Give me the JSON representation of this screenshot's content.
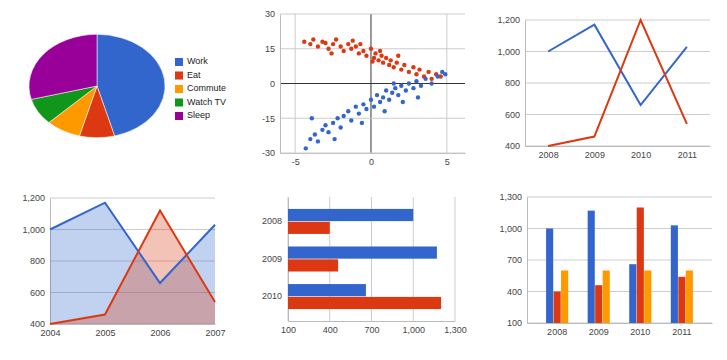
{
  "chart_data": [
    {
      "type": "pie",
      "categories": [
        "Work",
        "Eat",
        "Commute",
        "Watch TV",
        "Sleep"
      ],
      "values": [
        11,
        2,
        2,
        2,
        7
      ],
      "colors": [
        "#3366cc",
        "#dc3912",
        "#ff9900",
        "#109618",
        "#990099"
      ],
      "legend": "right"
    },
    {
      "type": "scatter",
      "xlim": [
        -6,
        6.2
      ],
      "xticks": [
        -5,
        0,
        5
      ],
      "ylim": [
        -30,
        30
      ],
      "yticks": [
        -30,
        -15,
        0,
        15,
        30
      ],
      "grid": true,
      "marker": "circle",
      "series": [
        {
          "color": "#dc3912",
          "x": [
            -4.4,
            -4,
            -3.8,
            -3.5,
            -3.2,
            -3,
            -2.8,
            -2.5,
            -2.3,
            -2,
            -1.8,
            -1.5,
            -1.3,
            -1,
            -0.8,
            -0.5,
            -0.3,
            0,
            0.2,
            0.3,
            0.5,
            0.7,
            0.8,
            1,
            1.2,
            1.3,
            1.5,
            1.7,
            2,
            2.2,
            2.5,
            2.8,
            3,
            3.2,
            3.5,
            3.8,
            4,
            4.3,
            4.6,
            -1.2,
            -0.7,
            0.6,
            1.8,
            -2.6,
            0.1
          ],
          "values": [
            18,
            17,
            19,
            16,
            18,
            17.5,
            15,
            17,
            19,
            16,
            14,
            17,
            15,
            16,
            13,
            14,
            12,
            15,
            11,
            13,
            10,
            12,
            9,
            11,
            8,
            10,
            7,
            9,
            6,
            8,
            5,
            7,
            4,
            6,
            3,
            5,
            2,
            4,
            3,
            18.5,
            17,
            14,
            12,
            13,
            9.5
          ]
        },
        {
          "color": "#3366cc",
          "x": [
            -4.3,
            -4,
            -3.7,
            -3.5,
            -3.2,
            -3,
            -2.8,
            -2.5,
            -2.2,
            -2,
            -1.8,
            -1.5,
            -1.3,
            -1,
            -0.8,
            -0.5,
            -0.3,
            0,
            0.2,
            0.4,
            0.6,
            0.8,
            1,
            1.2,
            1.4,
            1.6,
            1.8,
            2,
            2.3,
            2.5,
            2.8,
            3,
            3.3,
            3.6,
            4,
            4.4,
            4.7,
            4.9,
            -2.4,
            -0.6,
            0.9,
            2.1,
            3.1,
            -3.9,
            1.5
          ],
          "values": [
            -28,
            -24,
            -22,
            -25,
            -20,
            -18,
            -21,
            -17,
            -15,
            -19,
            -14,
            -12,
            -16,
            -10,
            -13,
            -9,
            -11,
            -7,
            -10,
            -5,
            -8,
            -6,
            -3,
            -7,
            -4,
            -2,
            -5,
            -1,
            -3,
            0,
            -2,
            1,
            -1,
            2,
            0,
            3,
            5,
            4,
            -24,
            -17,
            -12,
            -8,
            -6,
            -15,
            0
          ]
        }
      ]
    },
    {
      "type": "line",
      "categories": [
        "2008",
        "2009",
        "2010",
        "2011"
      ],
      "ylim": [
        400,
        1200
      ],
      "yticks": [
        400,
        600,
        800,
        {
          "value": 1000,
          "label": "1,000"
        },
        {
          "value": 1200,
          "label": "1,200"
        }
      ],
      "grid": true,
      "series": [
        {
          "color": "#3366cc",
          "values": [
            1000,
            1170,
            660,
            1030
          ]
        },
        {
          "color": "#dc3912",
          "values": [
            400,
            460,
            1200,
            540
          ]
        }
      ]
    },
    {
      "type": "area",
      "categories": [
        "2004",
        "2005",
        "2006",
        "2007"
      ],
      "ylim": [
        400,
        1200
      ],
      "yticks": [
        400,
        600,
        800,
        {
          "value": 1000,
          "label": "1,000"
        },
        {
          "value": 1200,
          "label": "1,200"
        }
      ],
      "grid": true,
      "series": [
        {
          "color": "#3366cc",
          "values": [
            1000,
            1170,
            660,
            1030
          ]
        },
        {
          "color": "#dc3912",
          "values": [
            400,
            460,
            1120,
            540
          ]
        }
      ]
    },
    {
      "type": "bar",
      "orientation": "horizontal",
      "categories": [
        "2008",
        "2009",
        "2010"
      ],
      "xlim": [
        100,
        1300
      ],
      "xticks": [
        100,
        400,
        700,
        {
          "value": 1000,
          "label": "1,000"
        },
        {
          "value": 1300,
          "label": "1,300"
        }
      ],
      "grid": true,
      "series": [
        {
          "color": "#3366cc",
          "values": [
            1000,
            1170,
            660
          ]
        },
        {
          "color": "#dc3912",
          "values": [
            400,
            460,
            1200
          ]
        }
      ]
    },
    {
      "type": "bar",
      "categories": [
        "2008",
        "2009",
        "2010",
        "2011"
      ],
      "ylim": [
        100,
        1300
      ],
      "yticks": [
        100,
        400,
        700,
        {
          "value": 1000,
          "label": "1,000"
        },
        {
          "value": 1300,
          "label": "1,300"
        }
      ],
      "grid": true,
      "series": [
        {
          "color": "#3366cc",
          "values": [
            1000,
            1170,
            660,
            1030
          ]
        },
        {
          "color": "#dc3912",
          "values": [
            400,
            460,
            1200,
            540
          ]
        },
        {
          "color": "#ff9900",
          "values": [
            600,
            600,
            600,
            600
          ]
        }
      ]
    }
  ]
}
